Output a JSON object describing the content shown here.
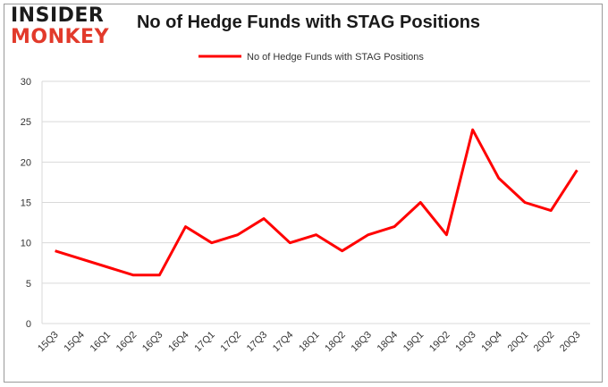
{
  "logo": {
    "line1": "INSIDER",
    "line2": "MONKEY"
  },
  "chart_data": {
    "type": "line",
    "title": "No of Hedge Funds with STAG Positions",
    "categories": [
      "15Q3",
      "15Q4",
      "16Q1",
      "16Q2",
      "16Q3",
      "16Q4",
      "17Q1",
      "17Q2",
      "17Q3",
      "17Q4",
      "18Q1",
      "18Q2",
      "18Q3",
      "18Q4",
      "19Q1",
      "19Q2",
      "19Q3",
      "19Q4",
      "20Q1",
      "20Q2",
      "20Q3"
    ],
    "series": [
      {
        "name": "No of Hedge Funds with STAG Positions",
        "values": [
          9,
          null,
          null,
          6,
          6,
          12,
          10,
          11,
          13,
          10,
          11,
          9,
          11,
          12,
          15,
          11,
          24,
          18,
          15,
          14,
          19
        ]
      }
    ],
    "ylim": [
      0,
      30
    ],
    "yticks": [
      0,
      5,
      10,
      15,
      20,
      25,
      30
    ],
    "grid": true,
    "legend": "top-center",
    "color": "#ff0000"
  }
}
